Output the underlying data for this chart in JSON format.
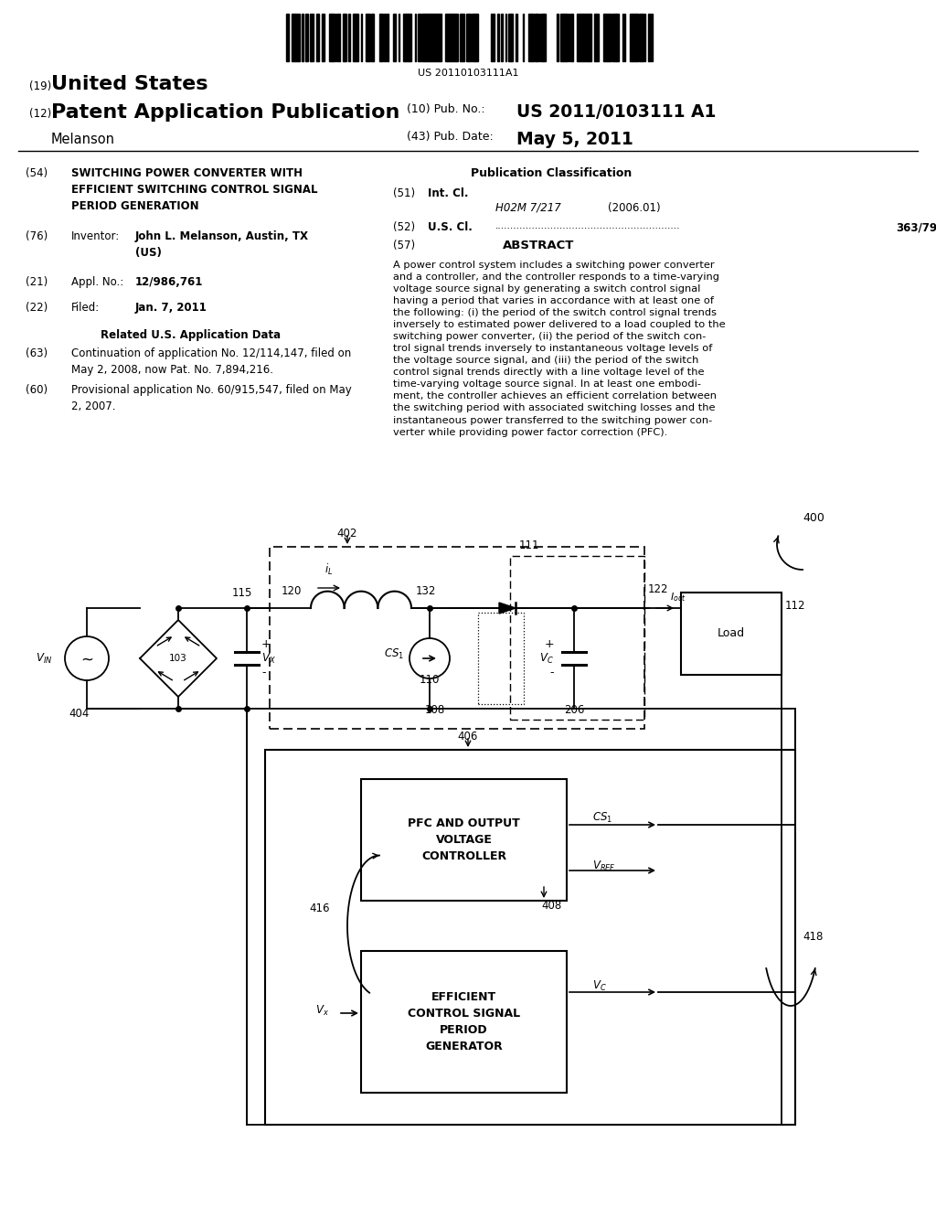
{
  "barcode_text": "US 20110103111A1",
  "country": "United States",
  "pub_type": "Patent Application Publication",
  "pub_num": "US 2011/0103111 A1",
  "pub_date": "May 5, 2011",
  "applicant": "Melanson",
  "num19": "(19)",
  "num12": "(12)",
  "num10": "(10) Pub. No.:",
  "num43": "(43) Pub. Date:",
  "item54_label": "(54)",
  "item54_title": "SWITCHING POWER CONVERTER WITH\nEFFICIENT SWITCHING CONTROL SIGNAL\nPERIOD GENERATION",
  "item76_label": "(76)",
  "item76_key": "Inventor:",
  "item76_val": "John L. Melanson, Austin, TX\n(US)",
  "item21_label": "(21)",
  "item21_key": "Appl. No.:",
  "item21_val": "12/986,761",
  "item22_label": "(22)",
  "item22_key": "Filed:",
  "item22_val": "Jan. 7, 2011",
  "related_title": "Related U.S. Application Data",
  "item63_label": "(63)",
  "item63_text": "Continuation of application No. 12/114,147, filed on\nMay 2, 2008, now Pat. No. 7,894,216.",
  "item60_label": "(60)",
  "item60_text": "Provisional application No. 60/915,547, filed on May\n2, 2007.",
  "pub_class_title": "Publication Classification",
  "item51_label": "(51)",
  "item51_key": "Int. Cl.",
  "item51_val": "H02M 7/217",
  "item51_year": "(2006.01)",
  "item52_label": "(52)",
  "item52_key": "U.S. Cl.",
  "item52_dots": "............................................................",
  "item52_val": "363/79",
  "item57_label": "(57)",
  "item57_key": "ABSTRACT",
  "abstract_text": "A power control system includes a switching power converter\nand a controller, and the controller responds to a time-varying\nvoltage source signal by generating a switch control signal\nhaving a period that varies in accordance with at least one of\nthe following: (i) the period of the switch control signal trends\ninversely to estimated power delivered to a load coupled to the\nswitching power converter, (ii) the period of the switch con-\ntrol signal trends inversely to instantaneous voltage levels of\nthe voltage source signal, and (iii) the period of the switch\ncontrol signal trends directly with a line voltage level of the\ntime-varying voltage source signal. In at least one embodi-\nment, the controller achieves an efficient correlation between\nthe switching period with associated switching losses and the\ninstantaneous power transferred to the switching power con-\nverter while providing power factor correction (PFC).",
  "bg_color": "#ffffff",
  "text_color": "#000000"
}
